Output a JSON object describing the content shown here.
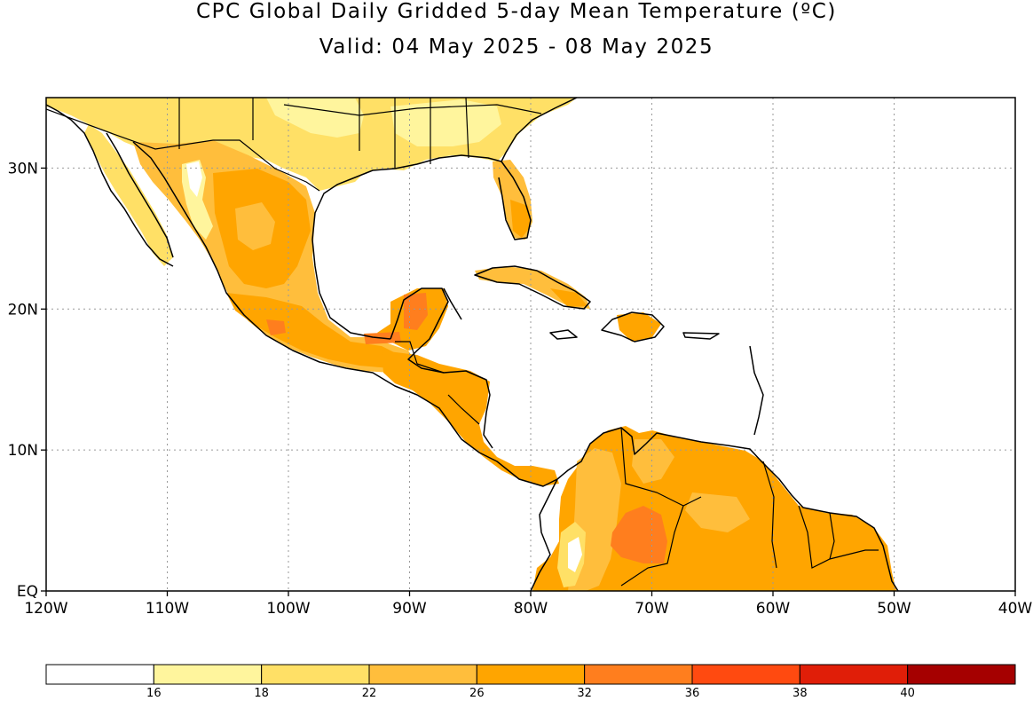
{
  "title": "CPC Global Daily Gridded 5-day Mean Temperature (ºC)",
  "subtitle": "Valid: 04 May 2025 - 08 May 2025",
  "map": {
    "lon_range": [
      -120,
      -40
    ],
    "lat_range": [
      0,
      35
    ],
    "grid": true,
    "lon_ticks": [
      {
        "lon": -120,
        "label": "120W"
      },
      {
        "lon": -110,
        "label": "110W"
      },
      {
        "lon": -100,
        "label": "100W"
      },
      {
        "lon": -90,
        "label": "90W"
      },
      {
        "lon": -80,
        "label": "80W"
      },
      {
        "lon": -70,
        "label": "70W"
      },
      {
        "lon": -60,
        "label": "60W"
      },
      {
        "lon": -50,
        "label": "50W"
      },
      {
        "lon": -40,
        "label": "40W"
      }
    ],
    "lat_ticks": [
      {
        "lat": 0,
        "label": "EQ"
      },
      {
        "lat": 10,
        "label": "10N"
      },
      {
        "lat": 20,
        "label": "20N"
      },
      {
        "lat": 30,
        "label": "30N"
      }
    ]
  },
  "colorbar": {
    "colors": [
      "#ffffff",
      "#fff59d",
      "#ffe066",
      "#ffbe3c",
      "#ffa500",
      "#ff7e1e",
      "#ff4a10",
      "#e01e08",
      "#a50000"
    ],
    "labels": [
      "16",
      "18",
      "22",
      "26",
      "32",
      "36",
      "38",
      "40"
    ]
  }
}
